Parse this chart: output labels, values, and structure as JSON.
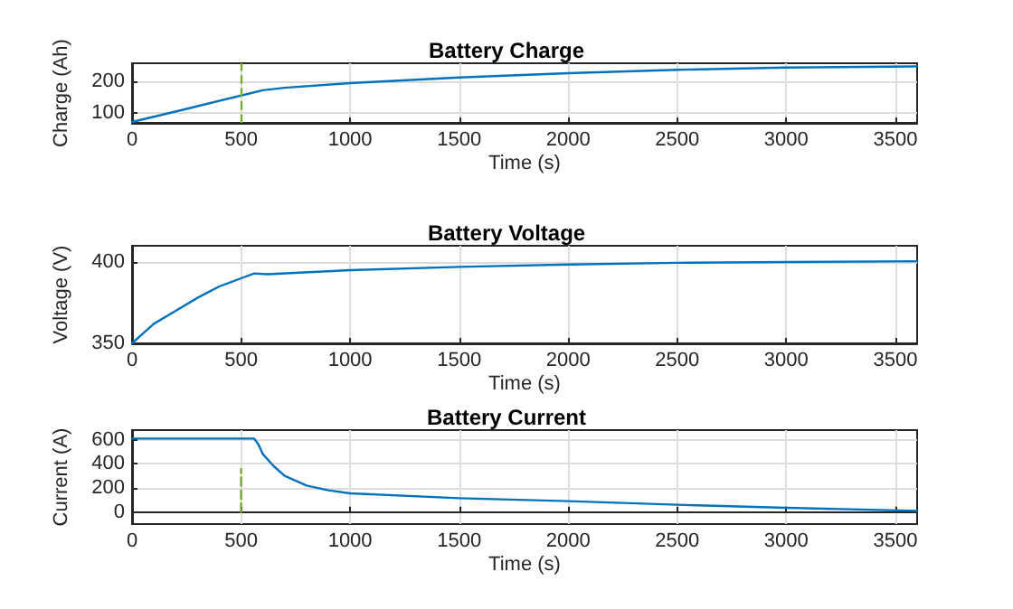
{
  "chart_data": [
    {
      "type": "line",
      "title": "Battery Charge",
      "xlabel": "Time (s)",
      "ylabel": "Charge (Ah)",
      "xlim": [
        0,
        3600
      ],
      "xticks": [
        0,
        500,
        1000,
        1500,
        2000,
        2500,
        3000,
        3500
      ],
      "ylim": [
        67,
        259
      ],
      "yticks": [
        100,
        200
      ],
      "grid": true,
      "x": [
        0,
        250,
        500,
        600,
        700,
        1000,
        1500,
        2000,
        2500,
        3000,
        3600
      ],
      "series": [
        {
          "color": "#0072bd",
          "values": [
            70,
            112,
            155,
            172,
            180,
            195,
            213,
            227,
            238,
            245,
            249
          ]
        }
      ],
      "ref_lines": [
        {
          "axis": "x",
          "value": 500,
          "color": "#77ac30",
          "line_style": "dashed"
        }
      ]
    },
    {
      "type": "line",
      "title": "Battery Voltage",
      "xlabel": "Time (s)",
      "ylabel": "Voltage (V)",
      "xlim": [
        0,
        3600
      ],
      "xticks": [
        0,
        500,
        1000,
        1500,
        2000,
        2500,
        3000,
        3500
      ],
      "ylim": [
        350,
        410
      ],
      "yticks": [
        350,
        400
      ],
      "grid": true,
      "x": [
        0,
        50,
        100,
        200,
        300,
        400,
        500,
        560,
        620,
        1000,
        1500,
        2000,
        2500,
        3000,
        3600
      ],
      "series": [
        {
          "color": "#0072bd",
          "values": [
            350,
            356,
            362,
            370,
            378,
            385,
            390,
            393,
            392.5,
            395,
            397,
            398.5,
            399.5,
            400,
            400.5
          ]
        }
      ]
    },
    {
      "type": "line",
      "title": "Battery Current",
      "xlabel": "Time (s)",
      "ylabel": "Current (A)",
      "xlim": [
        0,
        3600
      ],
      "xticks": [
        0,
        500,
        1000,
        1500,
        2000,
        2500,
        3000,
        3500
      ],
      "ylim": [
        -100,
        680
      ],
      "yticks": [
        0,
        200,
        400,
        600
      ],
      "grid": true,
      "x": [
        0,
        560,
        580,
        600,
        650,
        700,
        800,
        900,
        1000,
        1500,
        2000,
        2500,
        3000,
        3600
      ],
      "series": [
        {
          "color": "#0072bd",
          "values": [
            610,
            610,
            560,
            480,
            380,
            300,
            220,
            180,
            155,
            115,
            90,
            60,
            35,
            10
          ]
        },
        {
          "color": "#77ac30",
          "line_style": "dashed",
          "x": [
            500,
            500
          ],
          "values": [
            0,
            356
          ]
        }
      ]
    }
  ]
}
